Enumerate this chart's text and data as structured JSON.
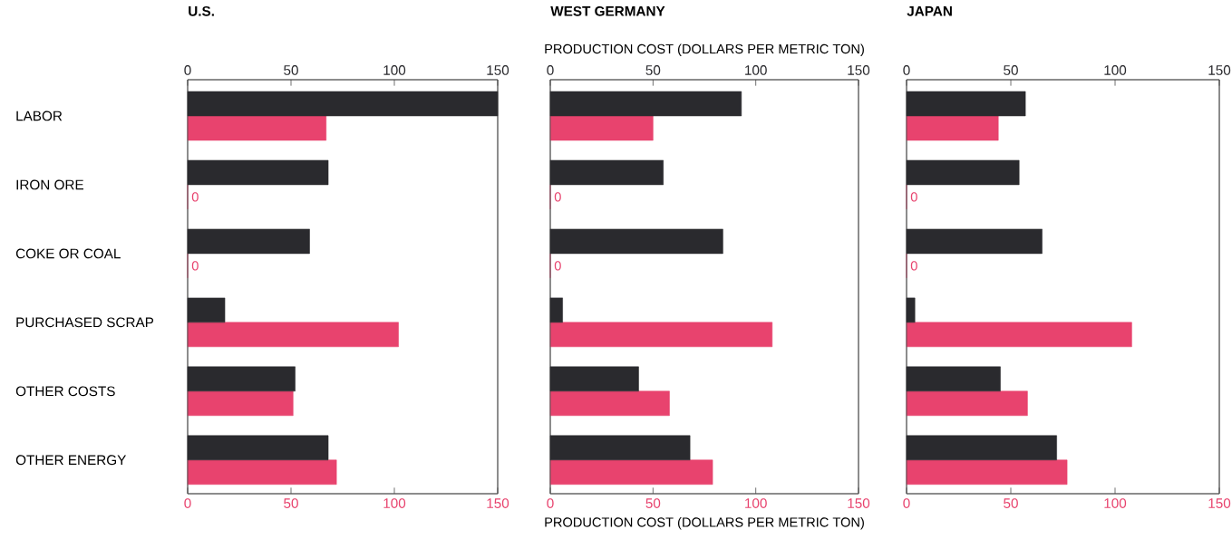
{
  "chart_data": [
    {
      "type": "bar",
      "orientation": "horizontal",
      "title": "U.S.",
      "categories": [
        "LABOR",
        "IRON ORE",
        "COKE OR COAL",
        "PURCHASED SCRAP",
        "OTHER COSTS",
        "OTHER ENERGY"
      ],
      "xlim": [
        0,
        150
      ],
      "xticks": [
        0,
        50,
        100,
        150
      ],
      "x2lim": [
        0,
        150
      ],
      "x2ticks": [
        0,
        50,
        100,
        150
      ],
      "series": [
        {
          "color": "#2a2a2e",
          "axis": "x2",
          "values": [
            150,
            68,
            59,
            18,
            52,
            68
          ]
        },
        {
          "color": "#e8436e",
          "values": [
            67,
            0,
            0,
            102,
            51,
            72
          ],
          "value_labels": [
            null,
            "0",
            "0",
            null,
            null,
            null
          ]
        }
      ]
    },
    {
      "type": "bar",
      "orientation": "horizontal",
      "title": "WEST GERMANY",
      "categories": [
        null,
        null,
        null,
        null,
        null,
        null
      ],
      "xlabel": "PRODUCTION COST (DOLLARS PER METRIC TON)",
      "x2label": "PRODUCTION COST (DOLLARS PER METRIC TON)",
      "xlim": [
        0,
        150
      ],
      "xticks": [
        0,
        50,
        100,
        150
      ],
      "x2lim": [
        0,
        150
      ],
      "x2ticks": [
        0,
        50,
        100,
        150
      ],
      "series": [
        {
          "color": "#2a2a2e",
          "axis": "x2",
          "values": [
            93,
            55,
            84,
            6,
            43,
            68
          ]
        },
        {
          "color": "#e8436e",
          "values": [
            50,
            0,
            0,
            108,
            58,
            79
          ],
          "value_labels": [
            null,
            "0",
            "0",
            null,
            null,
            null
          ]
        }
      ]
    },
    {
      "type": "bar",
      "orientation": "horizontal",
      "title": "JAPAN",
      "categories": [
        null,
        null,
        null,
        null,
        null,
        null
      ],
      "xlim": [
        0,
        150
      ],
      "xticks": [
        0,
        50,
        100,
        150
      ],
      "x2lim": [
        0,
        150
      ],
      "x2ticks": [
        0,
        50,
        100,
        150
      ],
      "series": [
        {
          "color": "#2a2a2e",
          "axis": "x2",
          "values": [
            57,
            54,
            65,
            4,
            45,
            72
          ]
        },
        {
          "color": "#e8436e",
          "values": [
            44,
            0,
            0,
            108,
            58,
            77
          ],
          "value_labels": [
            null,
            "0",
            "0",
            null,
            null,
            null
          ]
        }
      ]
    }
  ]
}
